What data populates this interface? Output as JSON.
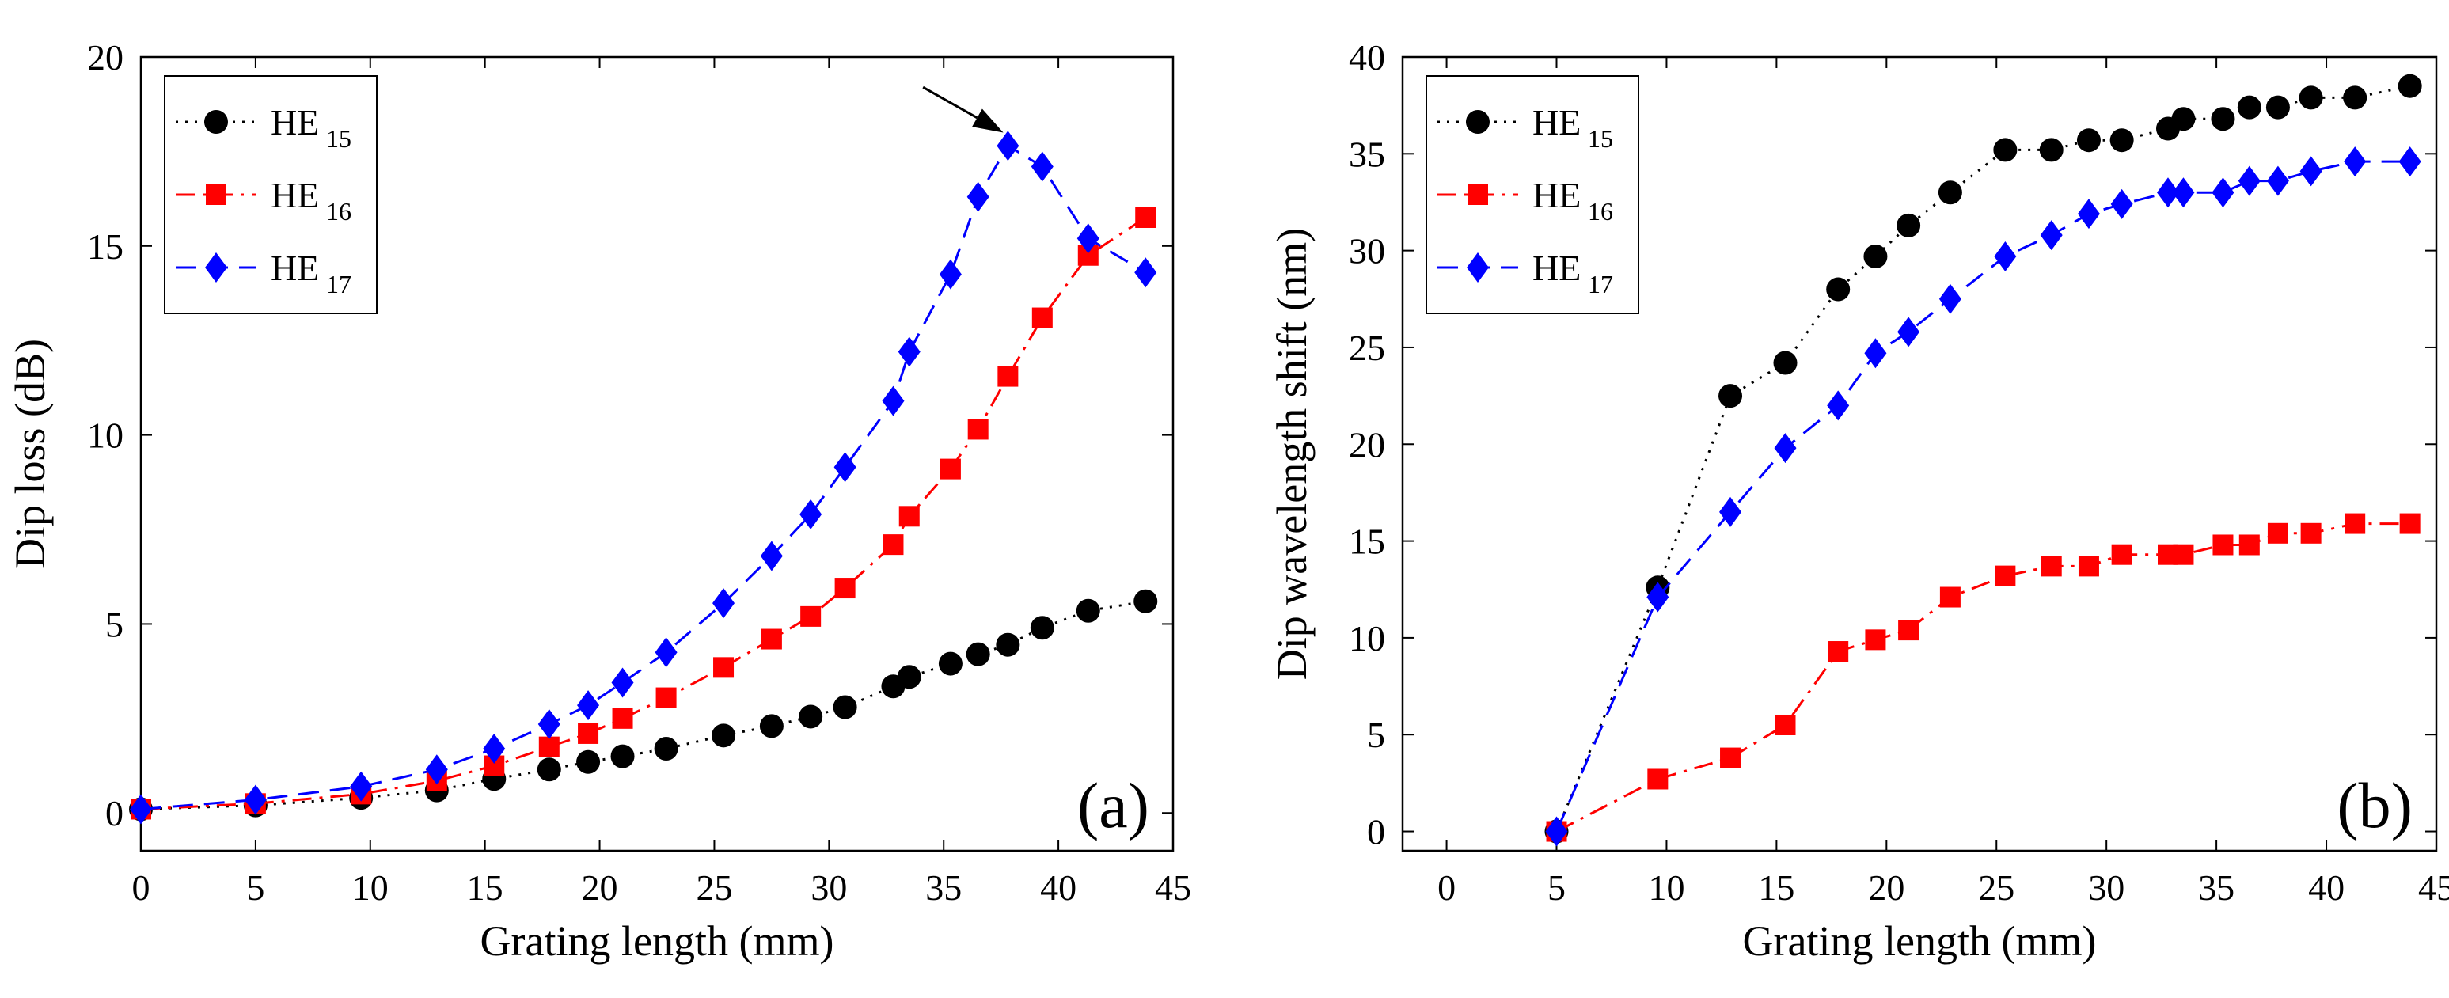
{
  "chart_data": [
    {
      "type": "line",
      "panel_label": "(a)",
      "title": "",
      "xlabel": "Grating length (mm)",
      "ylabel": "Dip loss (dB)",
      "xlim": [
        0,
        45
      ],
      "ylim": [
        -1,
        20
      ],
      "xticks": [
        0,
        5,
        10,
        15,
        20,
        25,
        30,
        35,
        40,
        45
      ],
      "yticks": [
        0,
        5,
        10,
        15,
        20
      ],
      "grid": false,
      "legend_position": "top-left",
      "series": [
        {
          "name": "HE15",
          "legend_base": "HE",
          "legend_sub": "15",
          "color": "#000000",
          "marker": "circle",
          "linestyle": "dotted",
          "x": [
            0,
            5,
            9.6,
            12.9,
            15.4,
            17.8,
            19.5,
            21,
            22.9,
            25.4,
            27.5,
            29.2,
            30.7,
            32.8,
            33.5,
            35.3,
            36.5,
            37.8,
            39.3,
            41.3,
            43.8
          ],
          "y": [
            0.1,
            0.2,
            0.4,
            0.6,
            0.9,
            1.15,
            1.35,
            1.5,
            1.7,
            2.05,
            2.3,
            2.55,
            2.8,
            3.35,
            3.6,
            3.95,
            4.2,
            4.45,
            4.9,
            5.35,
            5.6
          ]
        },
        {
          "name": "HE16",
          "legend_base": "HE",
          "legend_sub": "16",
          "color": "#ff0000",
          "marker": "square",
          "linestyle": "dashdot",
          "x": [
            0,
            5,
            9.6,
            12.9,
            15.4,
            17.8,
            19.5,
            21,
            22.9,
            25.4,
            27.5,
            29.2,
            30.7,
            32.8,
            33.5,
            35.3,
            36.5,
            37.8,
            39.3,
            41.3,
            43.8
          ],
          "y": [
            0.1,
            0.25,
            0.5,
            0.85,
            1.25,
            1.75,
            2.1,
            2.5,
            3.05,
            3.85,
            4.6,
            5.2,
            5.95,
            7.1,
            7.85,
            9.1,
            10.15,
            11.55,
            13.1,
            14.75,
            15.75
          ]
        },
        {
          "name": "HE17",
          "legend_base": "HE",
          "legend_sub": "17",
          "color": "#0000ff",
          "marker": "diamond",
          "linestyle": "dashed",
          "x": [
            0,
            5,
            9.6,
            12.9,
            15.4,
            17.8,
            19.5,
            21,
            22.9,
            25.4,
            27.5,
            29.2,
            30.7,
            32.8,
            33.5,
            35.3,
            36.5,
            37.8,
            39.3,
            41.3,
            43.8
          ],
          "y": [
            0.1,
            0.35,
            0.7,
            1.15,
            1.7,
            2.35,
            2.85,
            3.45,
            4.25,
            5.55,
            6.8,
            7.9,
            9.15,
            10.9,
            12.2,
            14.25,
            16.3,
            17.65,
            17.1,
            15.2,
            14.3
          ]
        }
      ],
      "annotations": [
        {
          "type": "arrow",
          "from": [
            34.1,
            19.2
          ],
          "to": [
            37.6,
            18.0
          ]
        }
      ]
    },
    {
      "type": "line",
      "panel_label": "(b)",
      "title": "",
      "xlabel": "Grating length (mm)",
      "ylabel": "Dip wavelength shift (nm)",
      "xlim": [
        -2,
        45
      ],
      "ylim": [
        -1,
        40
      ],
      "xticks": [
        0,
        5,
        10,
        15,
        20,
        25,
        30,
        35,
        40,
        45
      ],
      "yticks": [
        0,
        5,
        10,
        15,
        20,
        25,
        30,
        35,
        40
      ],
      "grid": false,
      "legend_position": "top-left",
      "series": [
        {
          "name": "HE15",
          "legend_base": "HE",
          "legend_sub": "15",
          "color": "#000000",
          "marker": "circle",
          "linestyle": "dotted",
          "x": [
            5,
            9.6,
            12.9,
            15.4,
            17.8,
            19.5,
            21,
            22.9,
            25.4,
            27.5,
            29.2,
            30.7,
            32.8,
            33.5,
            35.3,
            36.5,
            37.8,
            39.3,
            41.3,
            43.8
          ],
          "y": [
            0,
            12.6,
            22.5,
            24.2,
            28,
            29.7,
            31.3,
            33,
            35.2,
            35.2,
            35.7,
            35.7,
            36.3,
            36.8,
            36.8,
            37.4,
            37.4,
            37.9,
            37.9,
            38.5
          ]
        },
        {
          "name": "HE16",
          "legend_base": "HE",
          "legend_sub": "16",
          "color": "#ff0000",
          "marker": "square",
          "linestyle": "dashdot",
          "x": [
            5,
            9.6,
            12.9,
            15.4,
            17.8,
            19.5,
            21,
            22.9,
            25.4,
            27.5,
            29.2,
            30.7,
            32.8,
            33.5,
            35.3,
            36.5,
            37.8,
            39.3,
            41.3,
            43.8
          ],
          "y": [
            0,
            2.7,
            3.8,
            5.5,
            9.3,
            9.9,
            10.4,
            12.1,
            13.2,
            13.7,
            13.7,
            14.3,
            14.3,
            14.3,
            14.8,
            14.8,
            15.4,
            15.4,
            15.9,
            15.9
          ]
        },
        {
          "name": "HE17",
          "legend_base": "HE",
          "legend_sub": "17",
          "color": "#0000ff",
          "marker": "diamond",
          "linestyle": "dashed",
          "x": [
            5,
            9.6,
            12.9,
            15.4,
            17.8,
            19.5,
            21,
            22.9,
            25.4,
            27.5,
            29.2,
            30.7,
            32.8,
            33.5,
            35.3,
            36.5,
            37.8,
            39.3,
            41.3,
            43.8
          ],
          "y": [
            0,
            12.1,
            16.5,
            19.8,
            22,
            24.7,
            25.8,
            27.5,
            29.7,
            30.8,
            31.9,
            32.4,
            33,
            33,
            33,
            33.6,
            33.6,
            34.1,
            34.6,
            34.6
          ]
        }
      ],
      "annotations": []
    }
  ]
}
